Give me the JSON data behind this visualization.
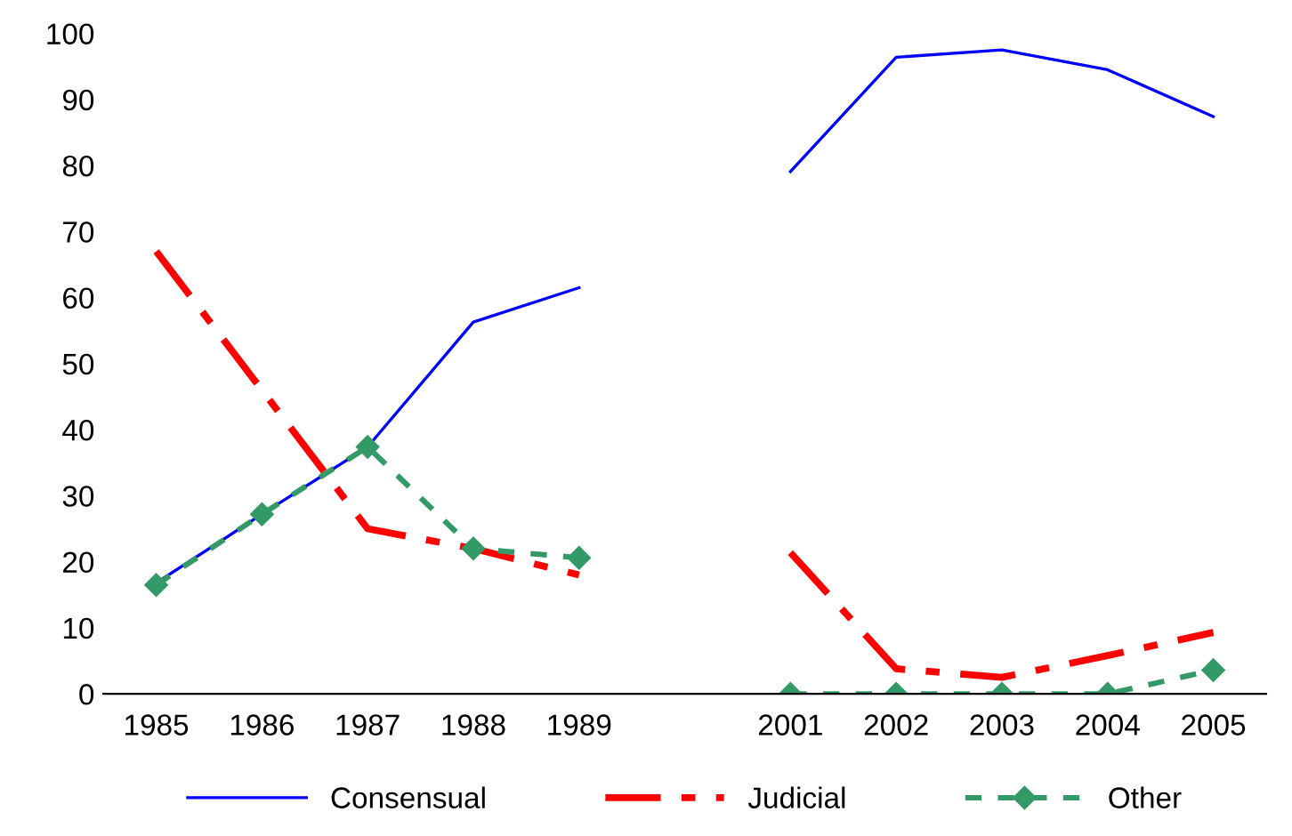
{
  "chart_data": {
    "type": "line",
    "categories": [
      "1985",
      "1986",
      "1987",
      "1988",
      "1989",
      null,
      "2001",
      "2002",
      "2003",
      "2004",
      "2005"
    ],
    "series": [
      {
        "name": "Consensual",
        "color": "#0000ff",
        "line_style": "solid",
        "marker": "none",
        "values": [
          16.8,
          27.2,
          37.4,
          56.3,
          61.5,
          null,
          79.1,
          96.4,
          97.5,
          94.5,
          87.4
        ]
      },
      {
        "name": "Judicial",
        "color": "#ff0000",
        "line_style": "dashdot",
        "marker": "none",
        "values": [
          67,
          46,
          25,
          22,
          18,
          null,
          21.4,
          3.8,
          2.5,
          5.8,
          9.3
        ]
      },
      {
        "name": "Other",
        "color": "#339966",
        "line_style": "dashed",
        "marker": "diamond",
        "values": [
          16.5,
          27.2,
          37.4,
          22,
          20.6,
          null,
          0,
          0,
          0,
          0,
          3.6
        ]
      }
    ],
    "ylim": [
      0,
      100
    ],
    "yticks": [
      0,
      10,
      20,
      30,
      40,
      50,
      60,
      70,
      80,
      90,
      100
    ],
    "grid": false,
    "legend": "bottom"
  }
}
